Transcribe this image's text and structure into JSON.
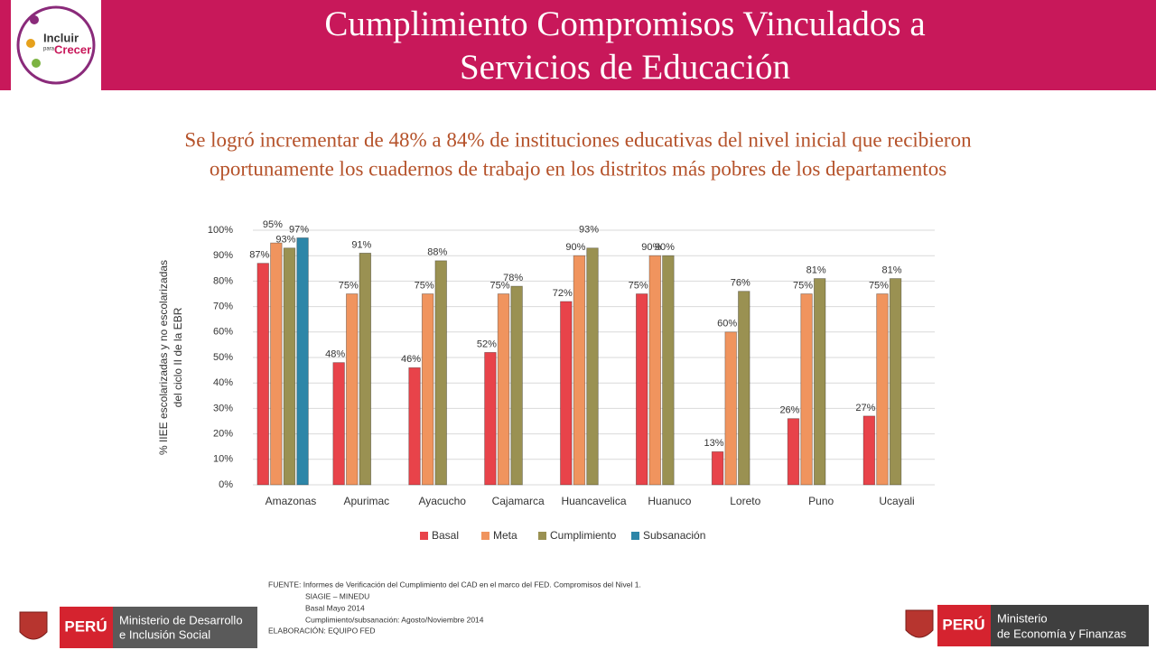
{
  "header": {
    "title": [
      "Cumplimiento Compromisos Vinculados a",
      "Servicios de Educación"
    ],
    "logo": [
      "Incluir",
      "para",
      "Crecer"
    ]
  },
  "subtitle": [
    "Se logró incrementar de 48% a 84% de instituciones educativas del nivel inicial que recibieron",
    "oportunamente los cuadernos de trabajo en los distritos más pobres de los departamentos"
  ],
  "chart_data": {
    "type": "bar",
    "ylabel": [
      "% IIEE  escolarizadas y no escolarizadas",
      "del ciclo II  de la EBR"
    ],
    "categories": [
      "Amazonas",
      "Apurimac",
      "Ayacucho",
      "Cajamarca",
      "Huancavelica",
      "Huanuco",
      "Loreto",
      "Puno",
      "Ucayali"
    ],
    "series": [
      {
        "name": "Basal",
        "color": "#e8434a",
        "values": [
          87,
          48,
          46,
          52,
          72,
          75,
          13,
          26,
          27
        ],
        "value_labels": [
          "87%",
          "48%",
          "46%",
          "52%",
          "72%",
          "75%",
          "13%",
          "26%",
          "27%"
        ]
      },
      {
        "name": "Meta",
        "color": "#f0945e",
        "values": [
          95,
          75,
          75,
          75,
          90,
          90,
          60,
          75,
          75
        ],
        "value_labels": [
          "95%",
          "75%",
          "75%",
          "75%",
          "90%",
          "90%",
          "60%",
          "75%",
          "75%"
        ]
      },
      {
        "name": "Cumplimiento",
        "color": "#9a9152",
        "values": [
          93,
          91,
          88,
          78,
          93,
          90,
          76,
          81,
          81
        ],
        "value_labels": [
          "93%",
          "91%",
          "88%",
          "78%",
          "93%",
          "90%",
          "76%",
          "81%",
          "81%"
        ]
      },
      {
        "name": "Subsanación",
        "color": "#2d86a8",
        "values": [
          97,
          null,
          null,
          null,
          null,
          null,
          null,
          null,
          null
        ],
        "value_labels": [
          "97%",
          null,
          null,
          null,
          null,
          null,
          null,
          null,
          null
        ]
      }
    ],
    "ylim": [
      0,
      100
    ],
    "yticks": [
      {
        "value": 0,
        "label": "0%"
      },
      {
        "value": 10,
        "label": "10%"
      },
      {
        "value": 20,
        "label": "20%"
      },
      {
        "value": 30,
        "label": "30%"
      },
      {
        "value": 40,
        "label": "40%"
      },
      {
        "value": 50,
        "label": "50%"
      },
      {
        "value": 60,
        "label": "60%"
      },
      {
        "value": 70,
        "label": "70%"
      },
      {
        "value": 80,
        "label": "80%"
      },
      {
        "value": 90,
        "label": "90%"
      },
      {
        "value": 100,
        "label": "100%"
      }
    ],
    "grid": true,
    "legend": "bottom"
  },
  "footnote": [
    "FUENTE: Informes de Verificación del Cumplimiento del CAD en el marco del FED. Compromisos del Nivel 1.",
    "SIAGIE – MINEDU",
    "Basal Mayo 2014",
    "Cumplimiento/subsanación: Agosto/Noviembre 2014",
    "ELABORACIÓN: EQUIPO FED"
  ],
  "logos": {
    "left": {
      "country": "PERÚ",
      "ministry": [
        "Ministerio de Desarrollo",
        "e Inclusión Social"
      ]
    },
    "right": {
      "country": "PERÚ",
      "ministry": [
        "Ministerio",
        "de Economía y Finanzas"
      ]
    }
  }
}
